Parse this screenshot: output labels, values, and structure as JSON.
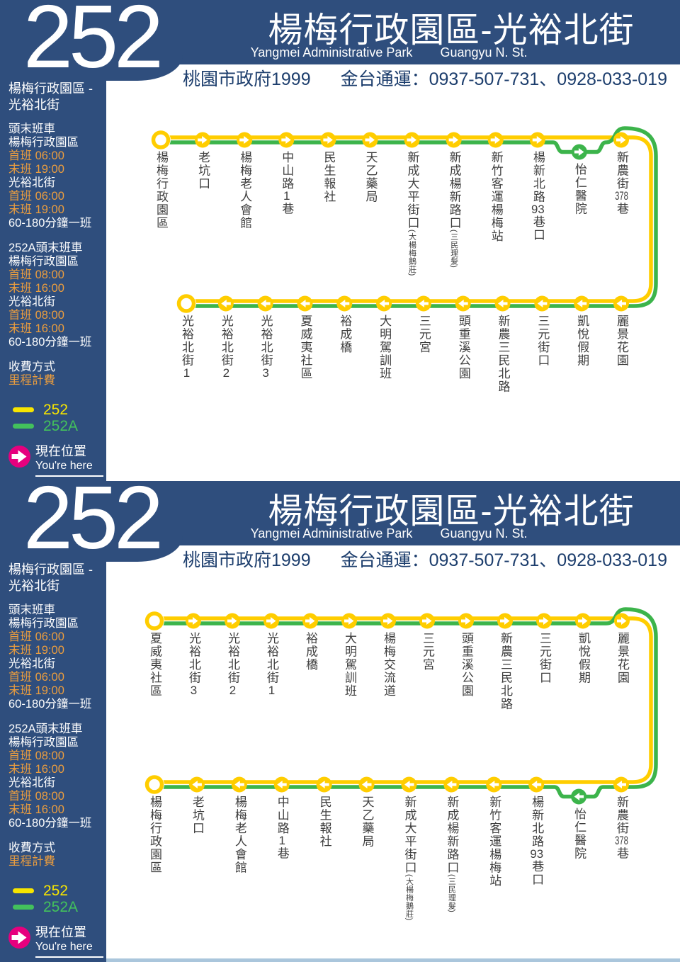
{
  "colors": {
    "navy": "#2f4e7d",
    "line_yellow": "#ffcd00",
    "line_green": "#3cb44b",
    "legend_yellow": "#f7e500",
    "legend_green": "#43c15c",
    "orange": "#eb9d3e",
    "pink": "#e6007e",
    "contact_text": "#1d3e6d",
    "label_text": "#3e3e3e"
  },
  "header": {
    "route_number": "252",
    "title": "楊梅行政園區-光裕北街",
    "subtitle_left": "Yangmei Administrative Park",
    "subtitle_right": "Guangyu N. St.",
    "contact_left": "桃園市政府1999",
    "contact_right": "金台通運：0937-507-731、0928-033-019"
  },
  "sidebar": {
    "route_name": [
      "楊梅行政園區 -",
      "光裕北街"
    ],
    "blocks": [
      {
        "rows": [
          {
            "text": "頭末班車",
            "color": "white"
          },
          {
            "text": "楊梅行政園區",
            "color": "white"
          },
          {
            "text": "首班 06:00",
            "color": "orange"
          },
          {
            "text": "末班 19:00",
            "color": "orange"
          },
          {
            "text": "光裕北街",
            "color": "white"
          },
          {
            "text": "首班 06:00",
            "color": "orange"
          },
          {
            "text": "末班 19:00",
            "color": "orange"
          },
          {
            "text": "60-180分鐘一班",
            "color": "white"
          }
        ]
      },
      {
        "rows": [
          {
            "text": "252A頭末班車",
            "color": "white"
          },
          {
            "text": "楊梅行政園區",
            "color": "white"
          },
          {
            "text": "首班 08:00",
            "color": "orange"
          },
          {
            "text": "末班 16:00",
            "color": "orange"
          },
          {
            "text": "光裕北街",
            "color": "white"
          },
          {
            "text": "首班 08:00",
            "color": "orange"
          },
          {
            "text": "末班 16:00",
            "color": "orange"
          },
          {
            "text": "60-180分鐘一班",
            "color": "white"
          }
        ]
      },
      {
        "rows": [
          {
            "text": "收費方式",
            "color": "white"
          },
          {
            "text": "里程計費",
            "color": "orange"
          }
        ]
      }
    ],
    "legend": [
      {
        "label": "252",
        "color_key": "yellow"
      },
      {
        "label": "252A",
        "color_key": "green"
      }
    ],
    "you_are_here": {
      "zh": "現在位置",
      "en": "You're here"
    }
  },
  "diagrams": [
    {
      "rows": [
        {
          "stops": [
            {
              "name": "楊梅行政園區",
              "terminal": true
            },
            {
              "name": "老坑口"
            },
            {
              "name": "楊梅老人會館"
            },
            {
              "name": "中山路1巷"
            },
            {
              "name": "民生報社"
            },
            {
              "name": "天乙藥局"
            },
            {
              "name": "新成大平街口",
              "sub": "(大楊梅鵝莊)"
            },
            {
              "name": "新成楊新路口",
              "sub": "(三民理髮)"
            },
            {
              "name": "新竹客運楊梅站"
            },
            {
              "name": "楊新北路93巷口"
            },
            {
              "name": "怡仁醫院",
              "branch": true
            },
            {
              "name": "新農街378巷"
            }
          ]
        },
        {
          "stops": [
            {
              "name": "光裕北街1",
              "terminal": true
            },
            {
              "name": "光裕北街2"
            },
            {
              "name": "光裕北街3"
            },
            {
              "name": "夏威夷社區"
            },
            {
              "name": "裕成橋"
            },
            {
              "name": "大明駕訓班"
            },
            {
              "name": "三元宮"
            },
            {
              "name": "頭重溪公園"
            },
            {
              "name": "新農三民北路"
            },
            {
              "name": "三元街口"
            },
            {
              "name": "凱悅假期"
            },
            {
              "name": "麗景花園"
            }
          ]
        }
      ]
    },
    {
      "rows": [
        {
          "stops": [
            {
              "name": "夏威夷社區",
              "terminal": true
            },
            {
              "name": "光裕北街3"
            },
            {
              "name": "光裕北街2"
            },
            {
              "name": "光裕北街1"
            },
            {
              "name": "裕成橋"
            },
            {
              "name": "大明駕訓班"
            },
            {
              "name": "楊梅交流道"
            },
            {
              "name": "三元宮"
            },
            {
              "name": "頭重溪公園"
            },
            {
              "name": "新農三民北路"
            },
            {
              "name": "三元街口"
            },
            {
              "name": "凱悅假期"
            },
            {
              "name": "麗景花園"
            }
          ]
        },
        {
          "stops": [
            {
              "name": "楊梅行政園區",
              "terminal": true
            },
            {
              "name": "老坑口"
            },
            {
              "name": "楊梅老人會館"
            },
            {
              "name": "中山路1巷"
            },
            {
              "name": "民生報社"
            },
            {
              "name": "天乙藥局"
            },
            {
              "name": "新成大平街口",
              "sub": "(大楊梅鵝莊)"
            },
            {
              "name": "新成楊新路口",
              "sub": "(三民理髮)"
            },
            {
              "name": "新竹客運楊梅站"
            },
            {
              "name": "楊新北路93巷口"
            },
            {
              "name": "怡仁醫院",
              "branch": true
            },
            {
              "name": "新農街378巷"
            }
          ]
        }
      ]
    }
  ]
}
